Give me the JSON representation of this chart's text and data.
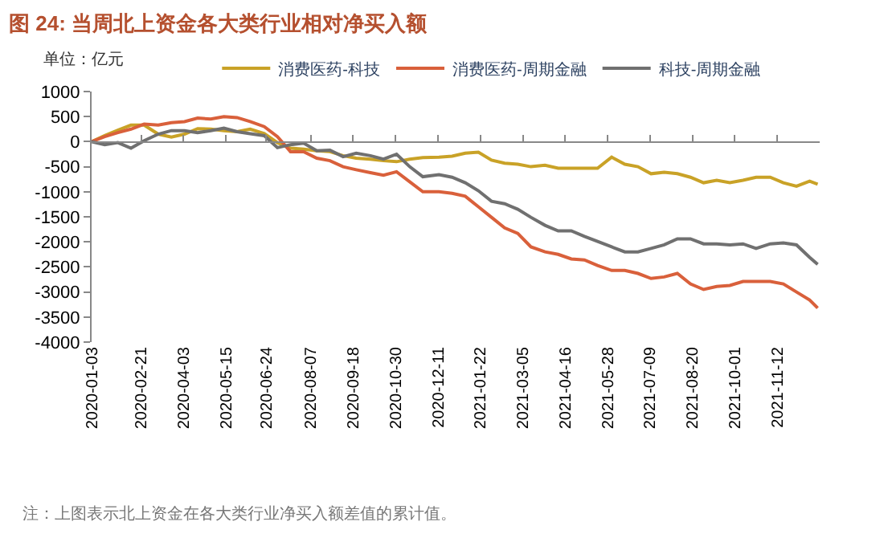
{
  "chart_data": {
    "type": "line",
    "title": "图 24: 当周北上资金各大类行业相对净买入额",
    "ylabel": "单位：亿元",
    "annotations": [
      "注：上图表示北上资金在各大类行业净买入额差值的累计值。"
    ],
    "x": [
      "2020-01-03",
      "2020-01-16",
      "2020-01-29",
      "2020-02-11",
      "2020-02-24",
      "2020-03-09",
      "2020-03-22",
      "2020-04-04",
      "2020-04-17",
      "2020-04-30",
      "2020-05-13",
      "2020-05-26",
      "2020-06-08",
      "2020-06-22",
      "2020-07-05",
      "2020-07-18",
      "2020-07-31",
      "2020-08-13",
      "2020-08-26",
      "2020-09-08",
      "2020-09-21",
      "2020-10-05",
      "2020-10-18",
      "2020-10-31",
      "2020-11-13",
      "2020-11-26",
      "2020-12-12",
      "2020-12-25",
      "2021-01-07",
      "2021-01-20",
      "2021-02-02",
      "2021-02-15",
      "2021-02-28",
      "2021-03-13",
      "2021-03-27",
      "2021-04-09",
      "2021-04-22",
      "2021-05-05",
      "2021-05-18",
      "2021-06-01",
      "2021-06-14",
      "2021-06-27",
      "2021-07-10",
      "2021-07-23",
      "2021-08-05",
      "2021-08-18",
      "2021-08-31",
      "2021-09-13",
      "2021-09-26",
      "2021-10-09",
      "2021-10-22",
      "2021-11-05",
      "2021-11-18",
      "2021-12-01",
      "2021-12-14",
      "2021-12-22"
    ],
    "series": [
      {
        "name": "消费医药-科技",
        "color": "#c9a227",
        "values": [
          0,
          120,
          230,
          330,
          330,
          150,
          90,
          150,
          260,
          250,
          220,
          200,
          250,
          160,
          -20,
          -130,
          -150,
          -180,
          -200,
          -280,
          -330,
          -350,
          -380,
          -400,
          -350,
          -320,
          -310,
          -290,
          -230,
          -210,
          -370,
          -430,
          -450,
          -500,
          -470,
          -530,
          -530,
          -530,
          -530,
          -310,
          -450,
          -500,
          -640,
          -610,
          -640,
          -710,
          -820,
          -770,
          -820,
          -770,
          -710,
          -710,
          -820,
          -890,
          -790,
          -850
        ]
      },
      {
        "name": "消费医药-周期金融",
        "color": "#d9603b",
        "values": [
          0,
          100,
          180,
          250,
          350,
          330,
          380,
          400,
          470,
          450,
          500,
          480,
          400,
          300,
          100,
          -200,
          -200,
          -330,
          -380,
          -500,
          -560,
          -620,
          -670,
          -600,
          -800,
          -1000,
          -1000,
          -1030,
          -1090,
          -1300,
          -1510,
          -1720,
          -1830,
          -2100,
          -2200,
          -2250,
          -2340,
          -2360,
          -2470,
          -2570,
          -2570,
          -2630,
          -2730,
          -2700,
          -2630,
          -2840,
          -2950,
          -2890,
          -2870,
          -2790,
          -2790,
          -2790,
          -2840,
          -3000,
          -3160,
          -3320
        ]
      },
      {
        "name": "科技-周期金融",
        "color": "#707070",
        "values": [
          0,
          -60,
          -20,
          -130,
          20,
          150,
          220,
          220,
          180,
          220,
          270,
          200,
          160,
          120,
          -120,
          -60,
          -30,
          -180,
          -170,
          -300,
          -230,
          -280,
          -350,
          -250,
          -500,
          -700,
          -660,
          -710,
          -820,
          -980,
          -1190,
          -1240,
          -1350,
          -1510,
          -1670,
          -1780,
          -1780,
          -1890,
          -1990,
          -2100,
          -2200,
          -2200,
          -2130,
          -2060,
          -1940,
          -1940,
          -2040,
          -2040,
          -2060,
          -2040,
          -2130,
          -2040,
          -2020,
          -2060,
          -2310,
          -2450
        ]
      }
    ],
    "xlim": [
      "2020-01-03",
      "2021-12-24"
    ],
    "xticks": [
      "2020-01-03",
      "2020-02-21",
      "2020-04-03",
      "2020-05-15",
      "2020-06-24",
      "2020-08-07",
      "2020-09-18",
      "2020-10-30",
      "2020-12-11",
      "2021-01-22",
      "2021-03-05",
      "2021-04-16",
      "2021-05-28",
      "2021-07-09",
      "2021-08-20",
      "2021-10-01",
      "2021-11-12"
    ],
    "ylim": [
      -4000,
      1000
    ],
    "yticks": [
      -4000,
      -3500,
      -3000,
      -2500,
      -2000,
      -1500,
      -1000,
      -500,
      0,
      500,
      1000
    ],
    "ref_lines": [
      {
        "axis": "y",
        "value": 0,
        "color": "#888888"
      }
    ],
    "grid": false,
    "legend": "top",
    "marker": "none",
    "line_style": "solid"
  }
}
